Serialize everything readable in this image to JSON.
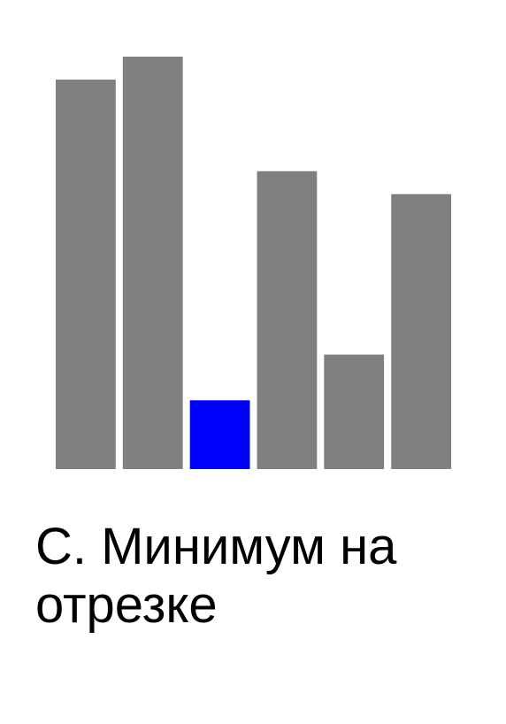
{
  "chart_data": {
    "type": "bar",
    "values": [
      6.8,
      7.2,
      1.2,
      5.2,
      2.0,
      4.8
    ],
    "highlighted_index": 2,
    "ylim": [
      0,
      7.2
    ],
    "grid": false,
    "colors": {
      "bar": "#808080",
      "highlight": "#0000ff"
    }
  },
  "title": "C. Минимум на отрезке"
}
